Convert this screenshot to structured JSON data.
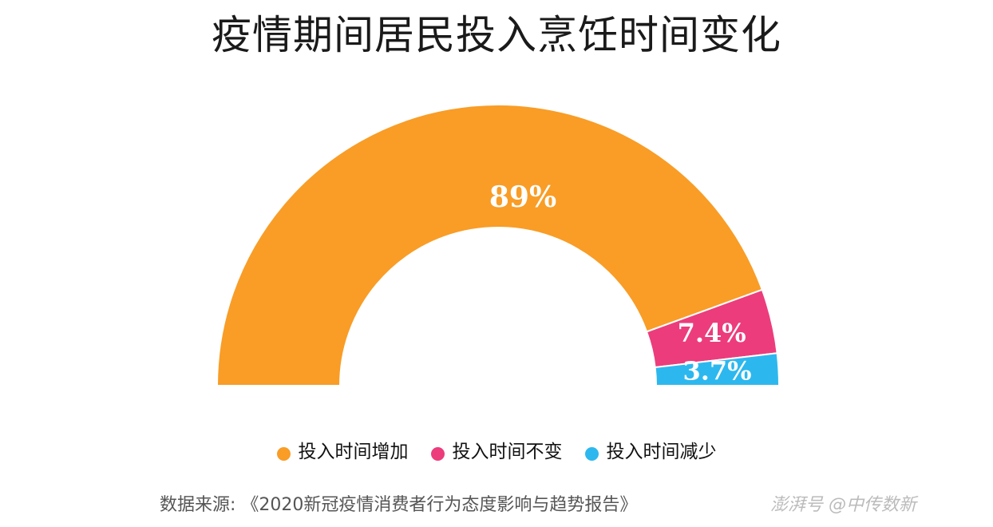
{
  "chart_data": {
    "type": "pie",
    "variant": "half-donut",
    "title": "疫情期间居民投入烹饪时间变化",
    "slices": [
      {
        "label": "投入时间增加",
        "value": 89,
        "display": "89%",
        "color": "#F99D26"
      },
      {
        "label": "投入时间不变",
        "value": 7.4,
        "display": "7.4%",
        "color": "#EC3C7C"
      },
      {
        "label": "投入时间减少",
        "value": 3.7,
        "display": "3.7%",
        "color": "#2CB8EE"
      }
    ],
    "legend_position": "bottom"
  },
  "source": "数据来源: 《2020新冠疫情消费者行为态度影响与趋势报告》",
  "watermark": "澎湃号 @中传数新"
}
